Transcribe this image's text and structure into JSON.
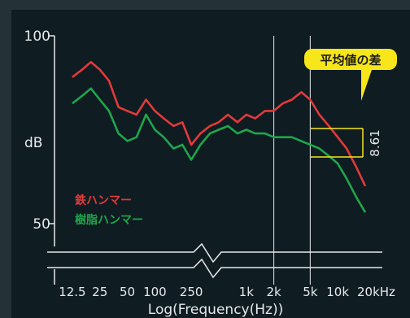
{
  "colors": {
    "panel_bg": "#0f1c22",
    "outer_bg": "#243238",
    "axis": "#e6eaec",
    "text": "#e6eaec",
    "iron": "#e23a3a",
    "resin": "#1fa64a",
    "callout_bg": "#f6e61a",
    "callout_text": "#1a1a1a",
    "bracket": "#f6e61a"
  },
  "callout": {
    "label": "平均値の差",
    "value": "8.61"
  },
  "chart_data": {
    "type": "line",
    "xscale": "log",
    "xlim": [
      10,
      20000
    ],
    "ylim": [
      50,
      100
    ],
    "ylabel": "dB",
    "xlabel": "Log(Frequency(Hz))",
    "y_ticks": [
      {
        "value": 100,
        "label": "100"
      },
      {
        "value": 50,
        "label": "50"
      }
    ],
    "x_ticks": [
      {
        "value": 12.5,
        "label": "12.5"
      },
      {
        "value": 25,
        "label": "25"
      },
      {
        "value": 50,
        "label": "50"
      },
      {
        "value": 100,
        "label": "100"
      },
      {
        "value": 250,
        "label": "250"
      },
      {
        "value": 1000,
        "label": "1k"
      },
      {
        "value": 2000,
        "label": "2k"
      },
      {
        "value": 5000,
        "label": "5k"
      },
      {
        "value": 10000,
        "label": "10k"
      },
      {
        "value": 20000,
        "label": "20kHz"
      }
    ],
    "vlines": [
      2000,
      5000
    ],
    "series": [
      {
        "name": "鉄ハンマー",
        "color": "#e23a3a",
        "points": [
          [
            12.5,
            89
          ],
          [
            16,
            91
          ],
          [
            20,
            93
          ],
          [
            25,
            91
          ],
          [
            31.5,
            88
          ],
          [
            40,
            81
          ],
          [
            50,
            80
          ],
          [
            63,
            79
          ],
          [
            80,
            83
          ],
          [
            100,
            80
          ],
          [
            125,
            78
          ],
          [
            160,
            76
          ],
          [
            200,
            77
          ],
          [
            250,
            71
          ],
          [
            315,
            74
          ],
          [
            400,
            76
          ],
          [
            500,
            77
          ],
          [
            630,
            79
          ],
          [
            800,
            77
          ],
          [
            1000,
            79
          ],
          [
            1250,
            78
          ],
          [
            1600,
            80
          ],
          [
            2000,
            80
          ],
          [
            2500,
            82
          ],
          [
            3150,
            83
          ],
          [
            4000,
            85
          ],
          [
            5000,
            83
          ],
          [
            6300,
            79
          ],
          [
            8000,
            76
          ],
          [
            10000,
            73
          ],
          [
            12500,
            70
          ],
          [
            16000,
            65
          ],
          [
            20000,
            60
          ]
        ]
      },
      {
        "name": "樹脂ハンマー",
        "color": "#1fa64a",
        "points": [
          [
            12.5,
            82
          ],
          [
            16,
            84
          ],
          [
            20,
            86
          ],
          [
            25,
            83
          ],
          [
            31.5,
            80
          ],
          [
            40,
            74
          ],
          [
            50,
            72
          ],
          [
            63,
            73
          ],
          [
            80,
            79
          ],
          [
            100,
            75
          ],
          [
            125,
            73
          ],
          [
            160,
            70
          ],
          [
            200,
            71
          ],
          [
            250,
            67
          ],
          [
            315,
            71
          ],
          [
            400,
            74
          ],
          [
            500,
            75
          ],
          [
            630,
            76
          ],
          [
            800,
            74
          ],
          [
            1000,
            75
          ],
          [
            1250,
            74
          ],
          [
            1600,
            74
          ],
          [
            2000,
            73
          ],
          [
            2500,
            73
          ],
          [
            3150,
            73
          ],
          [
            4000,
            72
          ],
          [
            5000,
            71
          ],
          [
            6300,
            70
          ],
          [
            8000,
            68
          ],
          [
            10000,
            66
          ],
          [
            12500,
            62
          ],
          [
            16000,
            57
          ],
          [
            20000,
            53
          ]
        ]
      }
    ]
  }
}
